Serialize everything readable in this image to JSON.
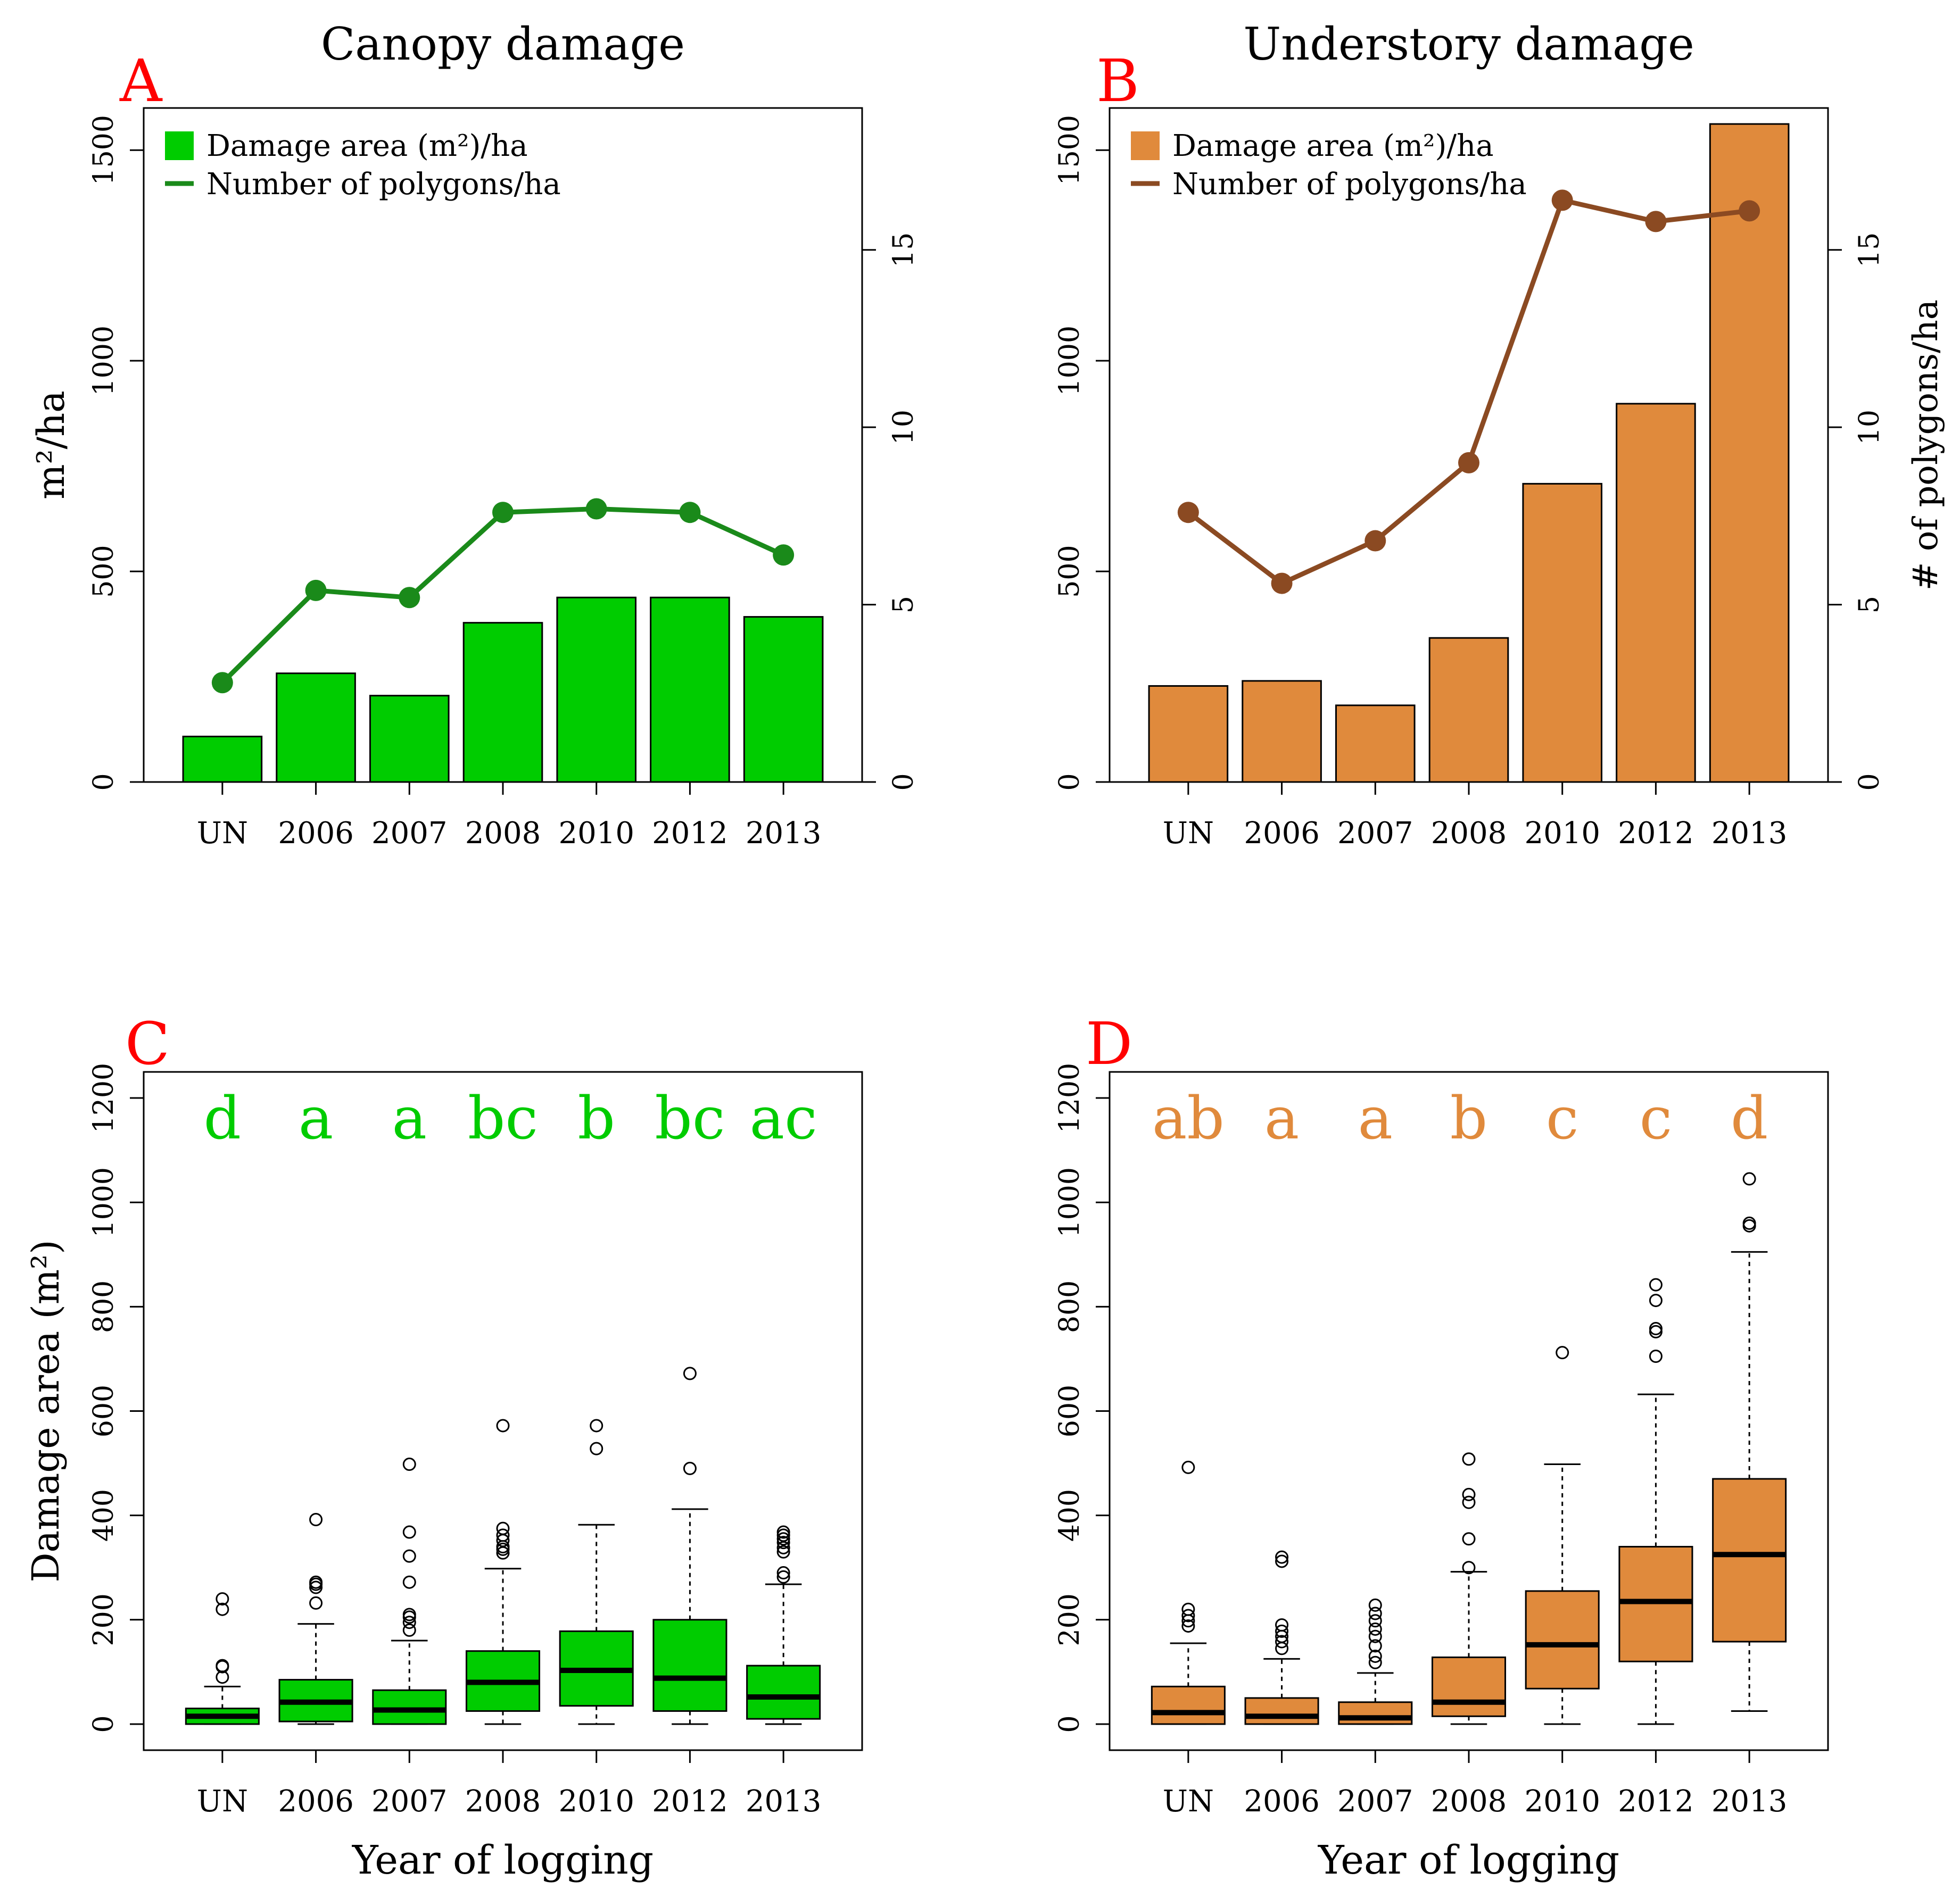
{
  "colors": {
    "canopy": "#00CC00",
    "canopy_line": "#1A8A1A",
    "understory": "#E08A3C",
    "understory_line": "#8B4A22",
    "panel_letter": "#FF0000",
    "axis": "#000000"
  },
  "chart_data": [
    {
      "id": "A",
      "type": "bar",
      "panel_letter": "A",
      "title": "Canopy damage",
      "categories": [
        "UN",
        "2006",
        "2007",
        "2008",
        "2010",
        "2012",
        "2013"
      ],
      "ylabel": "m²/ha",
      "ylabel_right": "",
      "ylim": [
        0,
        1600
      ],
      "yticks": [
        0,
        500,
        1000,
        1500
      ],
      "ylim_right": [
        0,
        19
      ],
      "yticks_right": [
        0,
        5,
        10,
        15
      ],
      "legend_position": "top-left",
      "series": [
        {
          "name": "Damage area (m²)/ha",
          "kind": "bar",
          "axis": "left",
          "values": [
            108,
            258,
            205,
            378,
            438,
            438,
            392
          ]
        },
        {
          "name": "Number of polygons/ha",
          "kind": "line",
          "axis": "right",
          "values": [
            2.8,
            5.4,
            5.2,
            7.6,
            7.7,
            7.6,
            6.4
          ]
        }
      ]
    },
    {
      "id": "B",
      "type": "bar",
      "panel_letter": "B",
      "title": "Understory damage",
      "categories": [
        "UN",
        "2006",
        "2007",
        "2008",
        "2010",
        "2012",
        "2013"
      ],
      "ylabel": "",
      "ylabel_right": "# of polygons/ha",
      "ylim": [
        0,
        1600
      ],
      "yticks": [
        0,
        500,
        1000,
        1500
      ],
      "ylim_right": [
        0,
        19
      ],
      "yticks_right": [
        0,
        5,
        10,
        15
      ],
      "legend_position": "top-left",
      "series": [
        {
          "name": "Damage area (m²)/ha",
          "kind": "bar",
          "axis": "left",
          "values": [
            228,
            240,
            182,
            342,
            708,
            898,
            1562
          ]
        },
        {
          "name": "Number of polygons/ha",
          "kind": "line",
          "axis": "right",
          "values": [
            7.6,
            5.6,
            6.8,
            9.0,
            16.4,
            15.8,
            16.1
          ]
        }
      ]
    },
    {
      "id": "C",
      "type": "box",
      "panel_letter": "C",
      "title": "",
      "categories": [
        "UN",
        "2006",
        "2007",
        "2008",
        "2010",
        "2012",
        "2013"
      ],
      "xlabel": "Year of logging",
      "ylabel": "Damage area (m²)",
      "ylim": [
        -50,
        1250
      ],
      "yticks": [
        0,
        200,
        400,
        600,
        800,
        1000,
        1200
      ],
      "letters": [
        "d",
        "a",
        "a",
        "bc",
        "b",
        "bc",
        "ac"
      ],
      "boxes": [
        {
          "whislo": 0,
          "q1": 0,
          "med": 15,
          "q3": 30,
          "whishi": 72,
          "fliers": [
            90,
            110,
            112,
            220,
            240
          ]
        },
        {
          "whislo": 0,
          "q1": 5,
          "med": 42,
          "q3": 85,
          "whishi": 192,
          "fliers": [
            232,
            262,
            268,
            272,
            392
          ]
        },
        {
          "whislo": 0,
          "q1": 0,
          "med": 27,
          "q3": 65,
          "whishi": 160,
          "fliers": [
            180,
            195,
            205,
            210,
            272,
            322,
            368,
            498
          ]
        },
        {
          "whislo": 0,
          "q1": 25,
          "med": 80,
          "q3": 140,
          "whishi": 298,
          "fliers": [
            328,
            335,
            340,
            352,
            362,
            375,
            572
          ]
        },
        {
          "whislo": 0,
          "q1": 35,
          "med": 103,
          "q3": 178,
          "whishi": 382,
          "fliers": [
            528,
            572
          ]
        },
        {
          "whislo": 0,
          "q1": 25,
          "med": 88,
          "q3": 200,
          "whishi": 412,
          "fliers": [
            490,
            672
          ]
        },
        {
          "whislo": 0,
          "q1": 10,
          "med": 52,
          "q3": 112,
          "whishi": 268,
          "fliers": [
            282,
            290,
            330,
            338,
            348,
            355,
            362,
            368
          ]
        }
      ]
    },
    {
      "id": "D",
      "type": "box",
      "panel_letter": "D",
      "title": "",
      "categories": [
        "UN",
        "2006",
        "2007",
        "2008",
        "2010",
        "2012",
        "2013"
      ],
      "xlabel": "Year of logging",
      "ylabel": "",
      "ylim": [
        -50,
        1250
      ],
      "yticks": [
        0,
        200,
        400,
        600,
        800,
        1000,
        1200
      ],
      "letters": [
        "ab",
        "a",
        "a",
        "b",
        "c",
        "c",
        "d"
      ],
      "boxes": [
        {
          "whislo": 0,
          "q1": 0,
          "med": 22,
          "q3": 72,
          "whishi": 155,
          "fliers": [
            188,
            198,
            208,
            220,
            492
          ]
        },
        {
          "whislo": 0,
          "q1": 0,
          "med": 15,
          "q3": 50,
          "whishi": 125,
          "fliers": [
            145,
            158,
            168,
            178,
            190,
            312,
            320
          ]
        },
        {
          "whislo": 0,
          "q1": 0,
          "med": 12,
          "q3": 42,
          "whishi": 98,
          "fliers": [
            118,
            130,
            150,
            168,
            182,
            198,
            212,
            228
          ]
        },
        {
          "whislo": 0,
          "q1": 15,
          "med": 42,
          "q3": 128,
          "whishi": 292,
          "fliers": [
            300,
            355,
            425,
            440,
            508
          ]
        },
        {
          "whislo": 0,
          "q1": 68,
          "med": 152,
          "q3": 255,
          "whishi": 498,
          "fliers": [
            712
          ]
        },
        {
          "whislo": 0,
          "q1": 120,
          "med": 235,
          "q3": 340,
          "whishi": 632,
          "fliers": [
            705,
            752,
            758,
            812,
            842
          ]
        },
        {
          "whislo": 25,
          "q1": 158,
          "med": 325,
          "q3": 470,
          "whishi": 905,
          "fliers": [
            955,
            960,
            1045
          ]
        }
      ]
    }
  ]
}
